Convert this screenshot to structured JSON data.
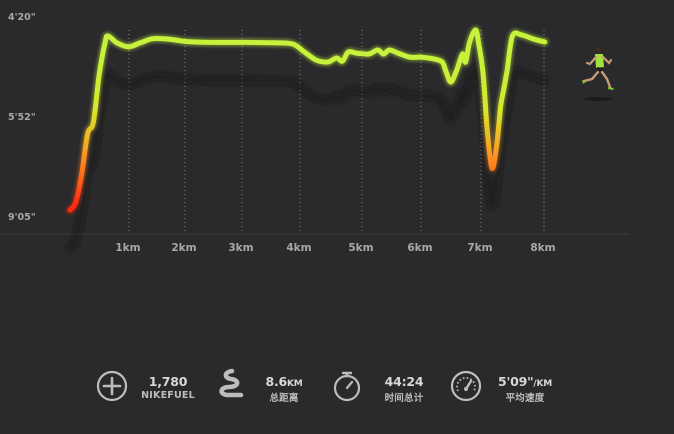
{
  "chart_data": {
    "type": "line",
    "title": "",
    "xlabel": "",
    "ylabel": "",
    "x_ticks": [
      "1km",
      "2km",
      "3km",
      "4km",
      "5km",
      "6km",
      "7km",
      "8km"
    ],
    "y_ticks": [
      "4'20\"",
      "5'52\"",
      "9'05\""
    ],
    "series": [
      {
        "values": [
          [
            0.0,
            9.0
          ],
          [
            0.1,
            8.8
          ],
          [
            0.2,
            8.1
          ],
          [
            0.3,
            7.1
          ],
          [
            0.4,
            6.8
          ],
          [
            0.5,
            5.6
          ],
          [
            0.6,
            4.8
          ],
          [
            0.65,
            4.65
          ],
          [
            0.8,
            4.82
          ],
          [
            1.0,
            4.92
          ],
          [
            1.2,
            4.82
          ],
          [
            1.4,
            4.72
          ],
          [
            1.6,
            4.72
          ],
          [
            1.8,
            4.75
          ],
          [
            2.0,
            4.79
          ],
          [
            2.5,
            4.81
          ],
          [
            3.0,
            4.81
          ],
          [
            3.5,
            4.82
          ],
          [
            3.8,
            4.85
          ],
          [
            4.0,
            5.05
          ],
          [
            4.2,
            5.25
          ],
          [
            4.4,
            5.3
          ],
          [
            4.55,
            5.2
          ],
          [
            4.65,
            5.28
          ],
          [
            4.75,
            5.05
          ],
          [
            4.9,
            5.08
          ],
          [
            5.1,
            5.1
          ],
          [
            5.25,
            5.0
          ],
          [
            5.35,
            5.1
          ],
          [
            5.45,
            5.0
          ],
          [
            5.6,
            5.08
          ],
          [
            5.8,
            5.18
          ],
          [
            6.0,
            5.18
          ],
          [
            6.2,
            5.22
          ],
          [
            6.35,
            5.3
          ],
          [
            6.42,
            5.55
          ],
          [
            6.5,
            5.8
          ],
          [
            6.6,
            5.5
          ],
          [
            6.7,
            5.1
          ],
          [
            6.75,
            5.3
          ],
          [
            6.82,
            4.8
          ],
          [
            6.92,
            4.5
          ],
          [
            6.97,
            4.8
          ],
          [
            7.05,
            5.6
          ],
          [
            7.12,
            7.0
          ],
          [
            7.2,
            7.95
          ],
          [
            7.28,
            7.4
          ],
          [
            7.35,
            6.4
          ],
          [
            7.4,
            6.0
          ],
          [
            7.46,
            5.5
          ],
          [
            7.55,
            4.65
          ],
          [
            7.7,
            4.62
          ],
          [
            7.9,
            4.72
          ],
          [
            8.1,
            4.8
          ]
        ]
      }
    ],
    "ylim_labels": "4'20\" top, 9'05\" bottom",
    "grid": "vertical dotted lines at km marks"
  },
  "stats": [
    {
      "icon": "plus-circle-icon",
      "value": "1,780",
      "unit": "",
      "label": "NIKEFUEL"
    },
    {
      "icon": "route-icon",
      "value": "8.6",
      "unit": "KM",
      "label": "总距离"
    },
    {
      "icon": "stopwatch-icon",
      "value": "44:24",
      "unit": "",
      "label": "时间总计"
    },
    {
      "icon": "speedometer-icon",
      "value": "5'09\"",
      "unit": "/KM",
      "label": "平均速度"
    }
  ],
  "colors": {
    "background": "#2a2a2c",
    "fast": "#b8f03a",
    "slow": "#ff2a10",
    "grid": "#8a8a8a"
  }
}
